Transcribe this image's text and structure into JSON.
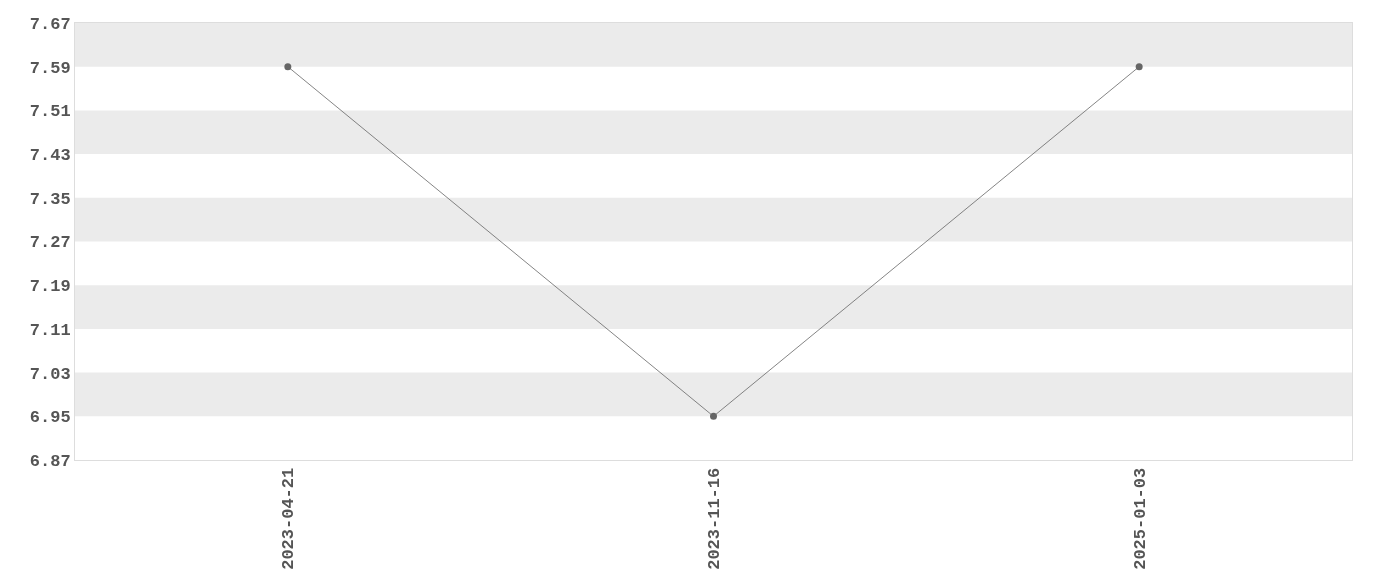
{
  "chart_data": {
    "type": "line",
    "categories": [
      "2023-04-21",
      "2023-11-16",
      "2025-01-03"
    ],
    "series": [
      {
        "color": "#666666",
        "values": [
          7.59,
          6.95,
          7.59
        ]
      }
    ],
    "ylim": [
      6.87,
      7.67
    ],
    "yticks": [
      6.87,
      6.95,
      7.03,
      7.11,
      7.19,
      7.27,
      7.35,
      7.43,
      7.51,
      7.59,
      7.67
    ],
    "bands": [
      {
        "axis": "y",
        "from": 7.59,
        "to": 7.67,
        "color": "#ebebeb"
      },
      {
        "axis": "y",
        "from": 7.43,
        "to": 7.51,
        "color": "#ebebeb"
      },
      {
        "axis": "y",
        "from": 7.27,
        "to": 7.35,
        "color": "#ebebeb"
      },
      {
        "axis": "y",
        "from": 7.11,
        "to": 7.19,
        "color": "#ebebeb"
      },
      {
        "axis": "y",
        "from": 6.95,
        "to": 7.03,
        "color": "#ebebeb"
      }
    ],
    "marker": "circle",
    "line_style": "solid"
  }
}
